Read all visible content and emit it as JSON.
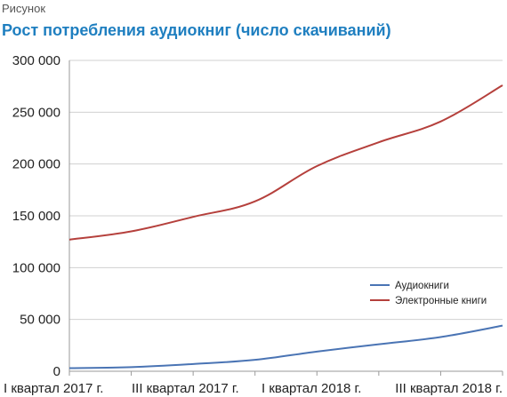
{
  "figure": {
    "label": "Рисунок",
    "title": "Рост потребления аудиокниг (число скачиваний)"
  },
  "chart_data": {
    "type": "line",
    "title": "Рост потребления аудиокниг (число скачиваний)",
    "xlabel": "",
    "ylabel": "",
    "ylim": [
      0,
      300000
    ],
    "y_ticks": [
      0,
      50000,
      100000,
      150000,
      200000,
      250000,
      300000
    ],
    "y_tick_labels": [
      "0",
      "50 000",
      "100 000",
      "150 000",
      "200 000",
      "250 000",
      "300 000"
    ],
    "x_tick_labels": [
      "I квартал 2017 г.",
      "III квартал 2017 г.",
      "I квартал 2018 г.",
      "III квартал 2018 г."
    ],
    "x_tick_label_positions": [
      0,
      2,
      4,
      6
    ],
    "x": [
      0,
      1,
      2,
      3,
      4,
      5,
      6,
      7
    ],
    "grid": true,
    "legend_position": "bottom-right",
    "series": [
      {
        "name": "Аудиокниги",
        "color": "#4a74b4",
        "values": [
          3000,
          4000,
          7000,
          11000,
          19000,
          26000,
          33000,
          44000
        ]
      },
      {
        "name": "Электронные книги",
        "color": "#b5403c",
        "values": [
          127000,
          135000,
          149000,
          164000,
          198000,
          221000,
          241000,
          276000
        ]
      }
    ]
  }
}
